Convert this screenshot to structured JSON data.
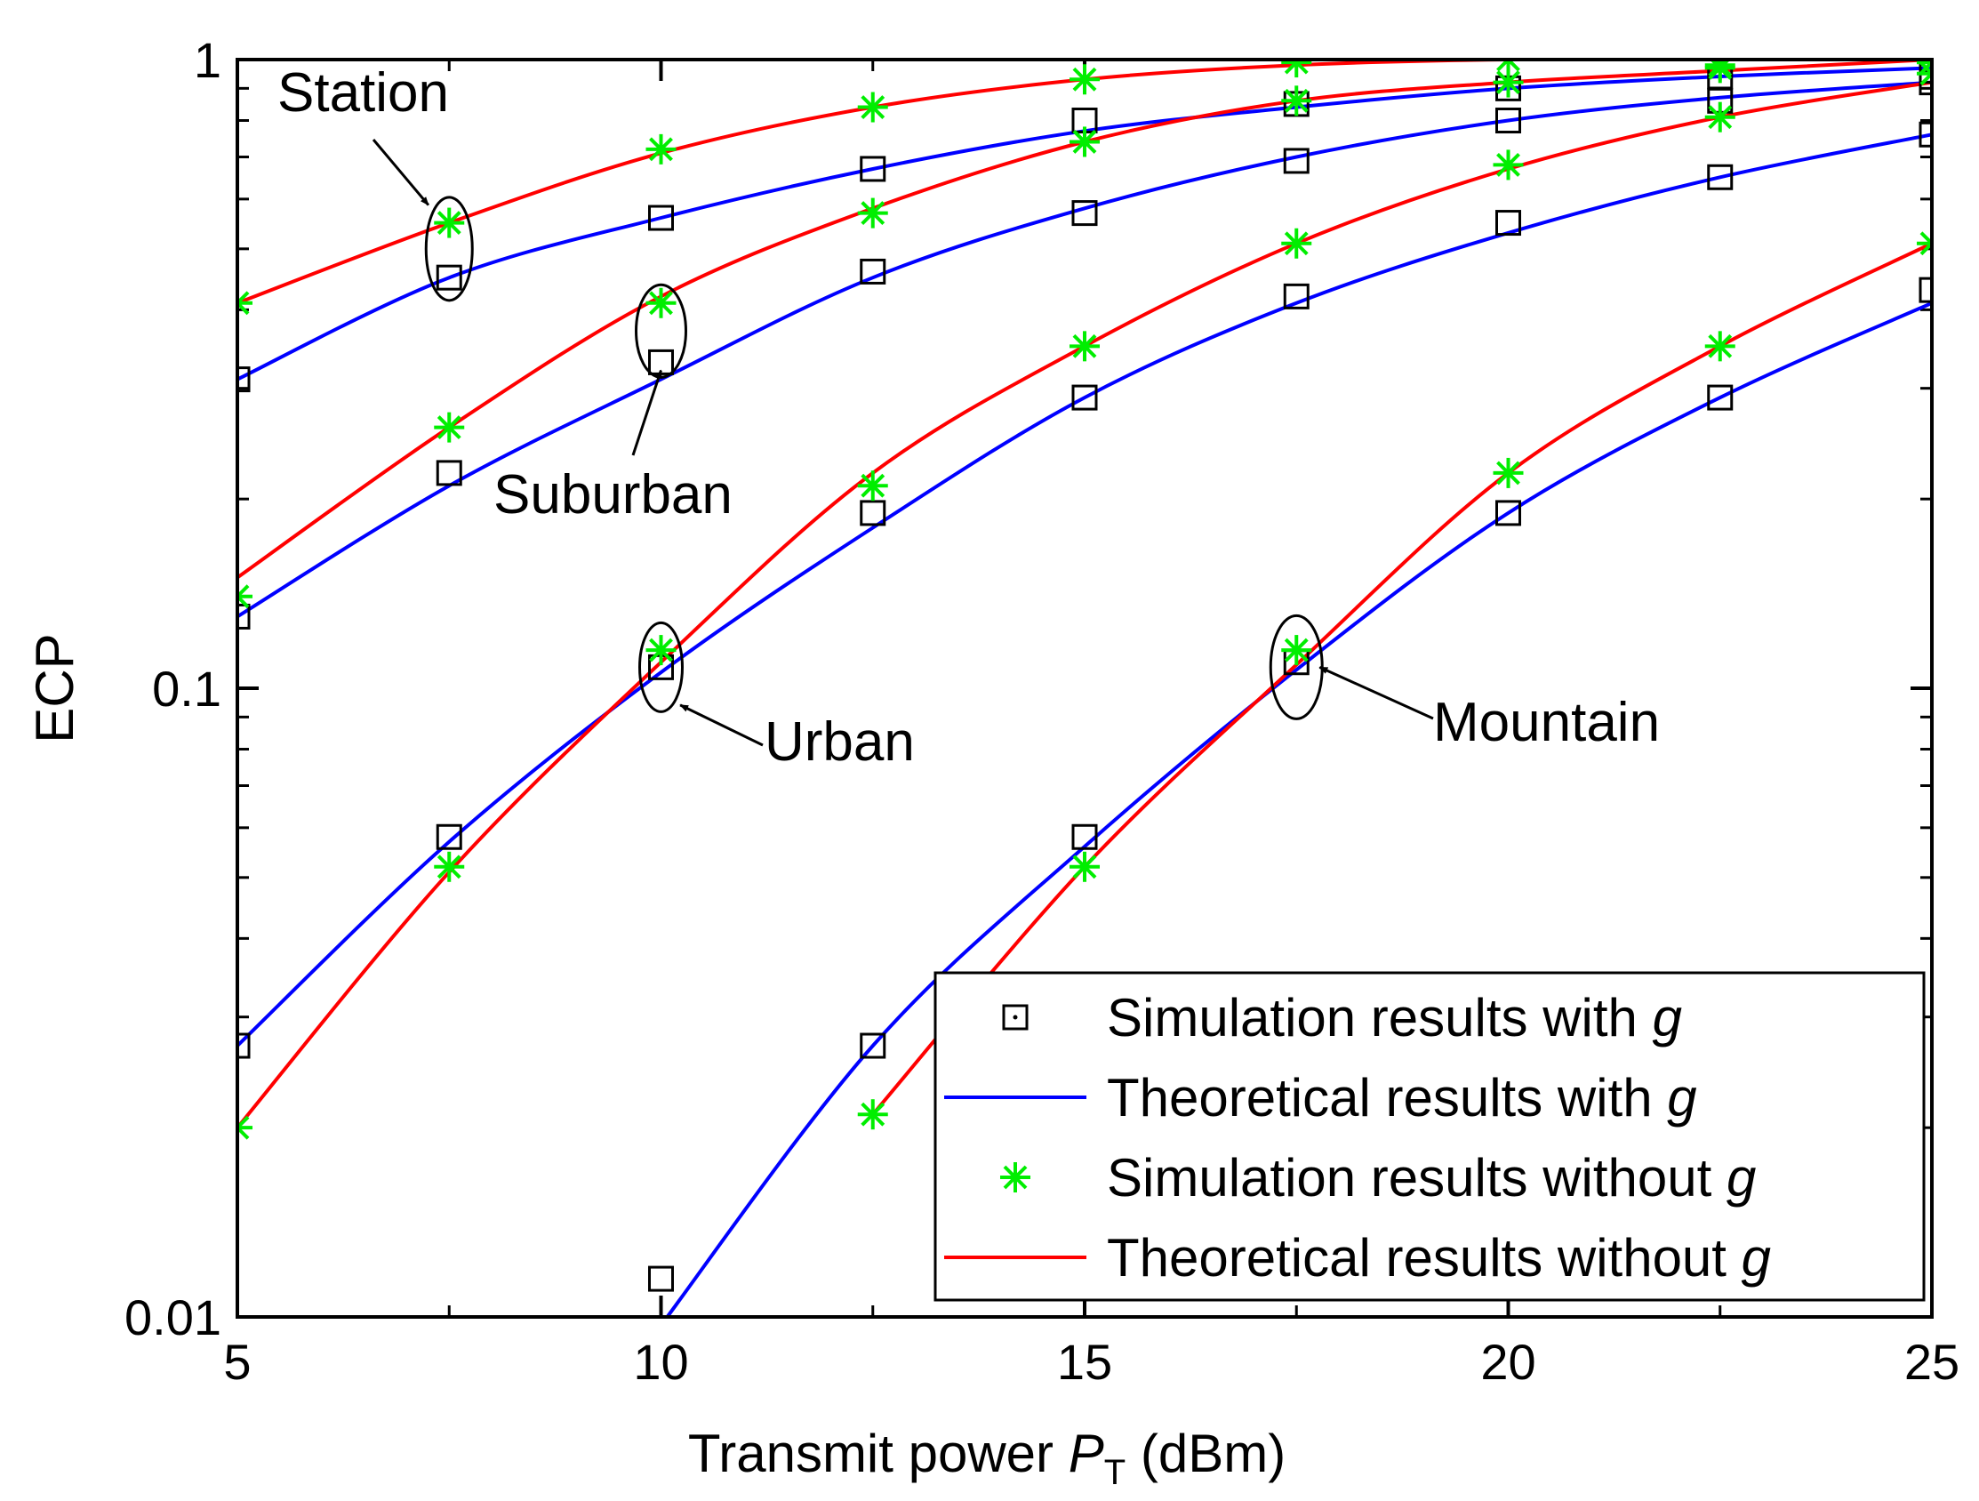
{
  "chart_data": {
    "type": "line",
    "title": "",
    "xlabel": {
      "prefix": "Transmit power ",
      "var": "P",
      "sub": "T",
      "suffix": " (dBm)"
    },
    "ylabel": "ECP",
    "yscale": "log",
    "xlim": [
      5,
      25
    ],
    "ylim": [
      0.01,
      1
    ],
    "xticks": [
      5,
      10,
      15,
      20,
      25
    ],
    "xtick_labels": [
      "5",
      "10",
      "15",
      "20",
      "25"
    ],
    "yticks": [
      0.01,
      0.1,
      1
    ],
    "ytick_labels": [
      "0.01",
      "0.1",
      "1"
    ],
    "grid": false,
    "legend_position": "bottom-right",
    "legend": [
      {
        "prefix": "Simulation results with ",
        "var": "g",
        "style": "sim_with"
      },
      {
        "prefix": "Theoretical results with ",
        "var": "g",
        "style": "theory_with"
      },
      {
        "prefix": "Simulation results without ",
        "var": "g",
        "style": "sim_without"
      },
      {
        "prefix": "Theoretical results without ",
        "var": "g",
        "style": "theory_without"
      }
    ],
    "colors": {
      "theory_with": "#0000ff",
      "theory_without": "#ff0000",
      "sim_with": "#000000",
      "sim_without": "#00ee00"
    },
    "x": [
      5,
      7.5,
      10,
      12.5,
      15,
      17.5,
      20,
      22.5,
      25
    ],
    "scenarios": [
      {
        "name": "Station",
        "theory_with": [
          0.31,
          0.45,
          0.56,
          0.67,
          0.77,
          0.84,
          0.9,
          0.94,
          0.97
        ],
        "sim_with": [
          0.31,
          0.45,
          0.56,
          0.67,
          0.8,
          0.85,
          0.9,
          0.94,
          0.96
        ],
        "theory_without": [
          0.41,
          0.55,
          0.71,
          0.84,
          0.93,
          0.98,
          1.0,
          1.0,
          1.0
        ],
        "sim_without": [
          0.41,
          0.55,
          0.72,
          0.84,
          0.93,
          0.99,
          1.0,
          0.98,
          0.99
        ]
      },
      {
        "name": "Suburban",
        "theory_with": [
          0.13,
          0.21,
          0.31,
          0.45,
          0.58,
          0.7,
          0.8,
          0.87,
          0.92
        ],
        "sim_with": [
          0.13,
          0.22,
          0.33,
          0.46,
          0.57,
          0.69,
          0.8,
          0.86,
          0.92
        ],
        "theory_without": [
          0.15,
          0.26,
          0.42,
          0.58,
          0.74,
          0.86,
          0.92,
          0.96,
          1.0
        ],
        "sim_without": [
          0.14,
          0.26,
          0.41,
          0.57,
          0.74,
          0.86,
          0.92,
          0.97,
          0.99
        ]
      },
      {
        "name": "Urban",
        "theory_with": [
          0.027,
          0.057,
          0.106,
          0.18,
          0.29,
          0.41,
          0.53,
          0.65,
          0.76
        ],
        "sim_with": [
          0.027,
          0.058,
          0.108,
          0.19,
          0.29,
          0.42,
          0.55,
          0.65,
          0.76
        ],
        "theory_without": [
          0.02,
          0.051,
          0.11,
          0.22,
          0.35,
          0.51,
          0.67,
          0.81,
          0.92
        ],
        "sim_without": [
          0.02,
          0.052,
          0.115,
          0.21,
          0.35,
          0.51,
          0.68,
          0.81,
          0.95
        ]
      },
      {
        "name": "Mountain",
        "theory_with": [
          null,
          null,
          0.0097,
          0.027,
          0.056,
          0.107,
          0.19,
          0.29,
          0.41
        ],
        "sim_with": [
          null,
          null,
          0.0115,
          0.027,
          0.058,
          0.11,
          0.19,
          0.29,
          0.43
        ],
        "theory_without": [
          null,
          null,
          null,
          0.021,
          0.052,
          0.109,
          0.22,
          0.35,
          0.51
        ],
        "sim_without": [
          null,
          null,
          null,
          0.021,
          0.052,
          0.115,
          0.22,
          0.35,
          0.51
        ]
      }
    ],
    "annotations": [
      {
        "text": "Station",
        "x": 7.5,
        "y": 0.5
      },
      {
        "text": "Suburban",
        "x": 10,
        "y": 0.37
      },
      {
        "text": "Urban",
        "x": 10,
        "y": 0.108
      },
      {
        "text": "Mountain",
        "x": 17.5,
        "y": 0.108
      }
    ]
  }
}
